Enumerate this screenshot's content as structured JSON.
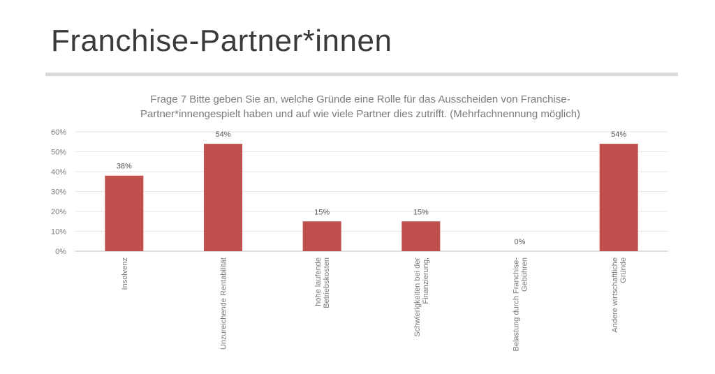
{
  "slide": {
    "title": "Franchise-Partner*innen"
  },
  "chart_data": {
    "type": "bar",
    "title": "Frage 7 Bitte geben Sie an, welche Gründe eine Rolle für das Ausscheiden von Franchise-Partner*innengespielt haben und auf wie viele Partner dies zutrifft. (Mehrfachnennung möglich)",
    "title_lines": [
      "Frage 7 Bitte geben Sie an, welche Gründe eine Rolle für das Ausscheiden von Franchise-",
      "Partner*innengespielt haben und auf wie viele Partner dies zutrifft. (Mehrfachnennung möglich)"
    ],
    "categories": [
      "Insolvenz",
      "Unzureichende Rentabilität",
      "hohe laufende Betriebskosten",
      "Schwierigkeiten bei der Finanzierung,",
      "Belastung durch Franchise-Gebühren",
      "Andere wirtschaftliche Gründe"
    ],
    "category_label_lines": [
      [
        "Insolvenz"
      ],
      [
        "Unzureichende Rentabilität"
      ],
      [
        "hohe laufende",
        "Betriebskosten"
      ],
      [
        "Schwierigkeiten bei der",
        "Finanzierung,"
      ],
      [
        "Belastung durch Franchise-",
        "Gebühren"
      ],
      [
        "Andere wirtschaftliche",
        "Gründe"
      ]
    ],
    "values": [
      38,
      54,
      15,
      15,
      0,
      54
    ],
    "data_labels": [
      "38%",
      "54%",
      "15%",
      "15%",
      "0%",
      "54%"
    ],
    "yticks": [
      0,
      10,
      20,
      30,
      40,
      50,
      60
    ],
    "ytick_labels": [
      "0%",
      "10%",
      "20%",
      "30%",
      "40%",
      "50%",
      "60%"
    ],
    "ylim": [
      0,
      60
    ],
    "xlabel": "",
    "ylabel": "",
    "grid": true,
    "legend": "none",
    "bar_color": "#c0504d"
  }
}
